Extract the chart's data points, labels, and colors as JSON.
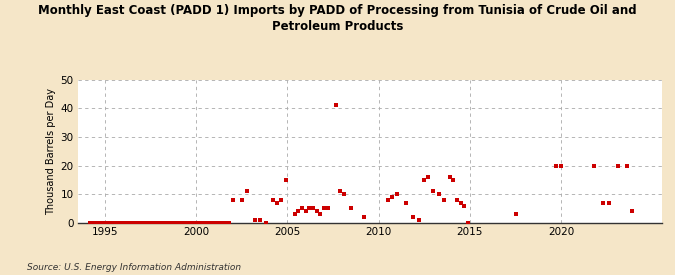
{
  "title": "Monthly East Coast (PADD 1) Imports by PADD of Processing from Tunisia of Crude Oil and\nPetroleum Products",
  "ylabel": "Thousand Barrels per Day",
  "source": "Source: U.S. Energy Information Administration",
  "bg_color": "#f5e6c8",
  "plot_bg_color": "#ffffff",
  "marker_color": "#cc0000",
  "xlim": [
    1993.5,
    2025.5
  ],
  "ylim": [
    0,
    50
  ],
  "yticks": [
    0,
    10,
    20,
    30,
    40,
    50
  ],
  "xticks": [
    1995,
    2000,
    2005,
    2010,
    2015,
    2020
  ],
  "data_points": [
    [
      1994.2,
      0
    ],
    [
      1994.4,
      0
    ],
    [
      1994.6,
      0
    ],
    [
      1994.8,
      0
    ],
    [
      1995.0,
      0
    ],
    [
      1995.2,
      0
    ],
    [
      1995.4,
      0
    ],
    [
      1995.6,
      0
    ],
    [
      1995.8,
      0
    ],
    [
      1996.0,
      0
    ],
    [
      1996.2,
      0
    ],
    [
      1996.4,
      0
    ],
    [
      1996.6,
      0
    ],
    [
      1996.8,
      0
    ],
    [
      1997.0,
      0
    ],
    [
      1997.2,
      0
    ],
    [
      1997.4,
      0
    ],
    [
      1997.6,
      0
    ],
    [
      1997.8,
      0
    ],
    [
      1998.0,
      0
    ],
    [
      1998.2,
      0
    ],
    [
      1998.4,
      0
    ],
    [
      1998.6,
      0
    ],
    [
      1998.8,
      0
    ],
    [
      1999.0,
      0
    ],
    [
      1999.2,
      0
    ],
    [
      1999.4,
      0
    ],
    [
      1999.6,
      0
    ],
    [
      1999.8,
      0
    ],
    [
      2000.0,
      0
    ],
    [
      2000.2,
      0
    ],
    [
      2000.4,
      0
    ],
    [
      2000.6,
      0
    ],
    [
      2000.8,
      0
    ],
    [
      2001.0,
      0
    ],
    [
      2001.2,
      0
    ],
    [
      2001.4,
      0
    ],
    [
      2001.6,
      0
    ],
    [
      2001.8,
      0
    ],
    [
      2002.0,
      8
    ],
    [
      2002.5,
      8
    ],
    [
      2002.8,
      11
    ],
    [
      2003.2,
      1
    ],
    [
      2003.5,
      1
    ],
    [
      2003.8,
      0
    ],
    [
      2004.2,
      8
    ],
    [
      2004.45,
      7
    ],
    [
      2004.65,
      8
    ],
    [
      2004.9,
      15
    ],
    [
      2005.4,
      3
    ],
    [
      2005.6,
      4
    ],
    [
      2005.8,
      5
    ],
    [
      2006.0,
      4
    ],
    [
      2006.2,
      5
    ],
    [
      2006.4,
      5
    ],
    [
      2006.6,
      4
    ],
    [
      2006.8,
      3
    ],
    [
      2007.0,
      5
    ],
    [
      2007.2,
      5
    ],
    [
      2007.65,
      41
    ],
    [
      2007.9,
      11
    ],
    [
      2008.1,
      10
    ],
    [
      2008.5,
      5
    ],
    [
      2009.2,
      2
    ],
    [
      2010.5,
      8
    ],
    [
      2010.75,
      9
    ],
    [
      2011.0,
      10
    ],
    [
      2011.5,
      7
    ],
    [
      2011.9,
      2
    ],
    [
      2012.2,
      1
    ],
    [
      2012.5,
      15
    ],
    [
      2012.7,
      16
    ],
    [
      2013.0,
      11
    ],
    [
      2013.3,
      10
    ],
    [
      2013.6,
      8
    ],
    [
      2013.9,
      16
    ],
    [
      2014.1,
      15
    ],
    [
      2014.3,
      8
    ],
    [
      2014.5,
      7
    ],
    [
      2014.7,
      6
    ],
    [
      2014.9,
      0
    ],
    [
      2017.5,
      3
    ],
    [
      2019.7,
      20
    ],
    [
      2020.0,
      20
    ],
    [
      2021.8,
      20
    ],
    [
      2022.3,
      7
    ],
    [
      2022.6,
      7
    ],
    [
      2023.1,
      20
    ],
    [
      2023.6,
      20
    ],
    [
      2023.9,
      4
    ]
  ]
}
